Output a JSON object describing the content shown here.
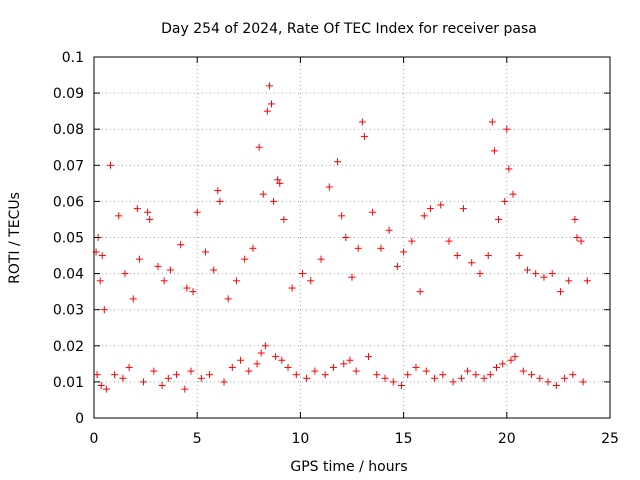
{
  "chart_data": {
    "type": "scatter",
    "title": "Day 254 of 2024, Rate Of TEC Index for receiver pasa",
    "xlabel": "GPS time / hours",
    "ylabel": "ROTI / TECUs",
    "xlim": [
      0,
      25
    ],
    "ylim": [
      0,
      0.1
    ],
    "x_ticks": [
      0,
      5,
      10,
      15,
      20,
      25
    ],
    "x_tick_labels": [
      "0",
      "5",
      "10",
      "15",
      "20",
      "25"
    ],
    "y_ticks": [
      0,
      0.01,
      0.02,
      0.03,
      0.04,
      0.05,
      0.06,
      0.07,
      0.08,
      0.09,
      0.1
    ],
    "y_tick_labels": [
      "0",
      "0.01",
      "0.02",
      "0.03",
      "0.04",
      "0.05",
      "0.06",
      "0.07",
      "0.08",
      "0.09",
      "0.1"
    ],
    "grid": true,
    "marker": "+",
    "marker_color": "#ff0000",
    "series": [
      {
        "name": "ROTI",
        "x": [
          0.1,
          0.2,
          0.3,
          0.4,
          0.5,
          0.8,
          1.2,
          1.5,
          1.9,
          2.1,
          2.2,
          2.6,
          2.7,
          3.1,
          3.4,
          3.7,
          4.2,
          4.5,
          4.8,
          5.0,
          5.4,
          5.8,
          6.0,
          6.1,
          6.5,
          6.9,
          7.3,
          7.7,
          8.0,
          8.2,
          8.4,
          8.5,
          8.6,
          8.7,
          8.9,
          9.0,
          9.2,
          9.6,
          10.1,
          10.5,
          11.0,
          11.4,
          11.8,
          12.0,
          12.2,
          12.5,
          12.8,
          13.0,
          13.1,
          13.5,
          13.9,
          14.3,
          14.7,
          15.0,
          15.4,
          15.8,
          16.0,
          16.3,
          16.8,
          17.2,
          17.6,
          17.9,
          18.3,
          18.7,
          19.1,
          19.3,
          19.4,
          19.6,
          19.9,
          20.0,
          20.1,
          20.3,
          20.6,
          21.0,
          21.4,
          21.8,
          22.2,
          22.6,
          23.0,
          23.3,
          23.4,
          23.6,
          23.9,
          0.15,
          0.35,
          0.6,
          1.0,
          1.4,
          1.7,
          2.4,
          2.9,
          3.3,
          3.6,
          4.0,
          4.4,
          4.7,
          5.2,
          5.6,
          6.3,
          6.7,
          7.1,
          7.5,
          7.9,
          8.1,
          8.3,
          8.8,
          9.1,
          9.4,
          9.8,
          10.3,
          10.7,
          11.2,
          11.6,
          12.1,
          12.4,
          12.7,
          13.3,
          13.7,
          14.1,
          14.5,
          14.9,
          15.2,
          15.6,
          16.1,
          16.5,
          16.9,
          17.4,
          17.8,
          18.1,
          18.5,
          18.9,
          19.2,
          19.5,
          19.8,
          20.2,
          20.4,
          20.8,
          21.2,
          21.6,
          22.0,
          22.4,
          22.8,
          23.2,
          23.7
        ],
        "y": [
          0.046,
          0.05,
          0.038,
          0.045,
          0.03,
          0.07,
          0.056,
          0.04,
          0.033,
          0.058,
          0.044,
          0.057,
          0.055,
          0.042,
          0.038,
          0.041,
          0.048,
          0.036,
          0.035,
          0.057,
          0.046,
          0.041,
          0.063,
          0.06,
          0.033,
          0.038,
          0.044,
          0.047,
          0.075,
          0.062,
          0.085,
          0.092,
          0.087,
          0.06,
          0.066,
          0.065,
          0.055,
          0.036,
          0.04,
          0.038,
          0.044,
          0.064,
          0.071,
          0.056,
          0.05,
          0.039,
          0.047,
          0.082,
          0.078,
          0.057,
          0.047,
          0.052,
          0.042,
          0.046,
          0.049,
          0.035,
          0.056,
          0.058,
          0.059,
          0.049,
          0.045,
          0.058,
          0.043,
          0.04,
          0.045,
          0.082,
          0.074,
          0.055,
          0.06,
          0.08,
          0.069,
          0.062,
          0.045,
          0.041,
          0.04,
          0.039,
          0.04,
          0.035,
          0.038,
          0.055,
          0.05,
          0.049,
          0.038,
          0.012,
          0.009,
          0.008,
          0.012,
          0.011,
          0.014,
          0.01,
          0.013,
          0.009,
          0.011,
          0.012,
          0.008,
          0.013,
          0.011,
          0.012,
          0.01,
          0.014,
          0.016,
          0.013,
          0.015,
          0.018,
          0.02,
          0.017,
          0.016,
          0.014,
          0.012,
          0.011,
          0.013,
          0.012,
          0.014,
          0.015,
          0.016,
          0.013,
          0.017,
          0.012,
          0.011,
          0.01,
          0.009,
          0.012,
          0.014,
          0.013,
          0.011,
          0.012,
          0.01,
          0.011,
          0.013,
          0.012,
          0.011,
          0.012,
          0.014,
          0.015,
          0.016,
          0.017,
          0.013,
          0.012,
          0.011,
          0.01,
          0.009,
          0.011,
          0.012,
          0.01
        ]
      }
    ]
  }
}
